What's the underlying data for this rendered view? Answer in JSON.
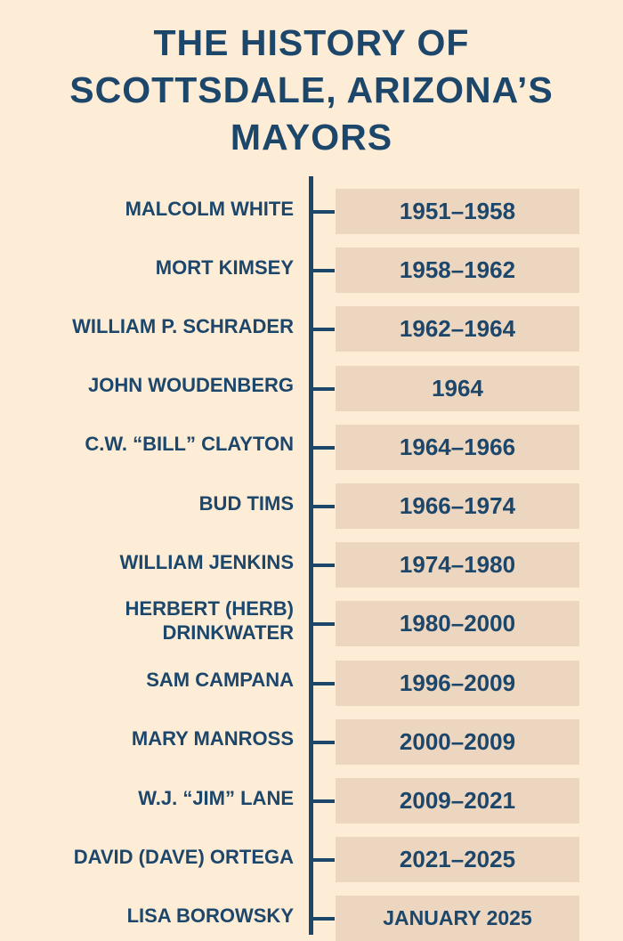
{
  "title": "THE HISTORY OF SCOTTSDALE, ARIZONA’S MAYORS",
  "mayors": [
    {
      "name": "MALCOLM WHITE",
      "term": "1951–1958"
    },
    {
      "name": "MORT KIMSEY",
      "term": "1958–1962"
    },
    {
      "name": "WILLIAM P. SCHRADER",
      "term": "1962–1964"
    },
    {
      "name": "JOHN WOUDENBERG",
      "term": "1964"
    },
    {
      "name": "C.W. “BILL” CLAYTON",
      "term": "1964–1966"
    },
    {
      "name": "BUD TIMS",
      "term": "1966–1974"
    },
    {
      "name": "WILLIAM JENKINS",
      "term": "1974–1980"
    },
    {
      "name": "HERBERT (HERB) DRINKWATER",
      "term": "1980–2000"
    },
    {
      "name": "SAM CAMPANA",
      "term": "1996–2009"
    },
    {
      "name": "MARY MANROSS",
      "term": "2000–2009"
    },
    {
      "name": "W.J. “JIM” LANE",
      "term": "2009–2021"
    },
    {
      "name": "DAVID (DAVE) ORTEGA",
      "term": "2021–2025"
    },
    {
      "name": "LISA BOROWSKY",
      "term": "JANUARY 2025"
    }
  ]
}
